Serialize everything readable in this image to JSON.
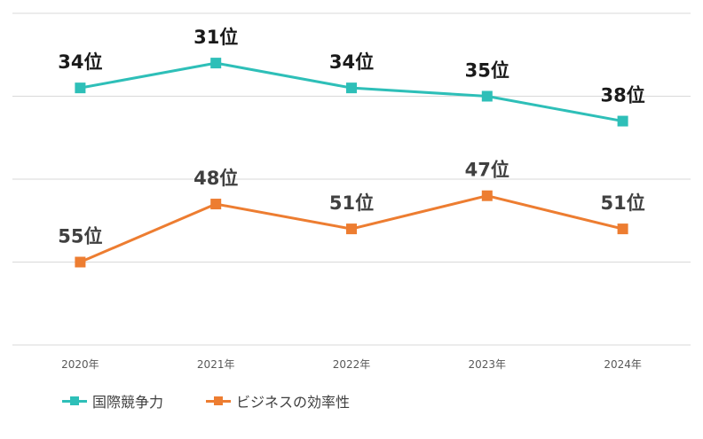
{
  "chart_data": {
    "type": "line",
    "categories": [
      "2020年",
      "2021年",
      "2022年",
      "2023年",
      "2024年"
    ],
    "y_inverted": true,
    "ylim": [
      25,
      65
    ],
    "grid": true,
    "legend_position": "bottom-left",
    "series": [
      {
        "name": "国際競争力",
        "color": "#2EBFB8",
        "values": [
          34,
          31,
          34,
          35,
          38
        ],
        "labels": [
          "34位",
          "31位",
          "34位",
          "35位",
          "38位"
        ]
      },
      {
        "name": "ビジネスの効率性",
        "color": "#ED7D31",
        "values": [
          55,
          48,
          51,
          47,
          51
        ],
        "labels": [
          "55位",
          "48位",
          "51位",
          "47位",
          "51位"
        ]
      }
    ]
  }
}
